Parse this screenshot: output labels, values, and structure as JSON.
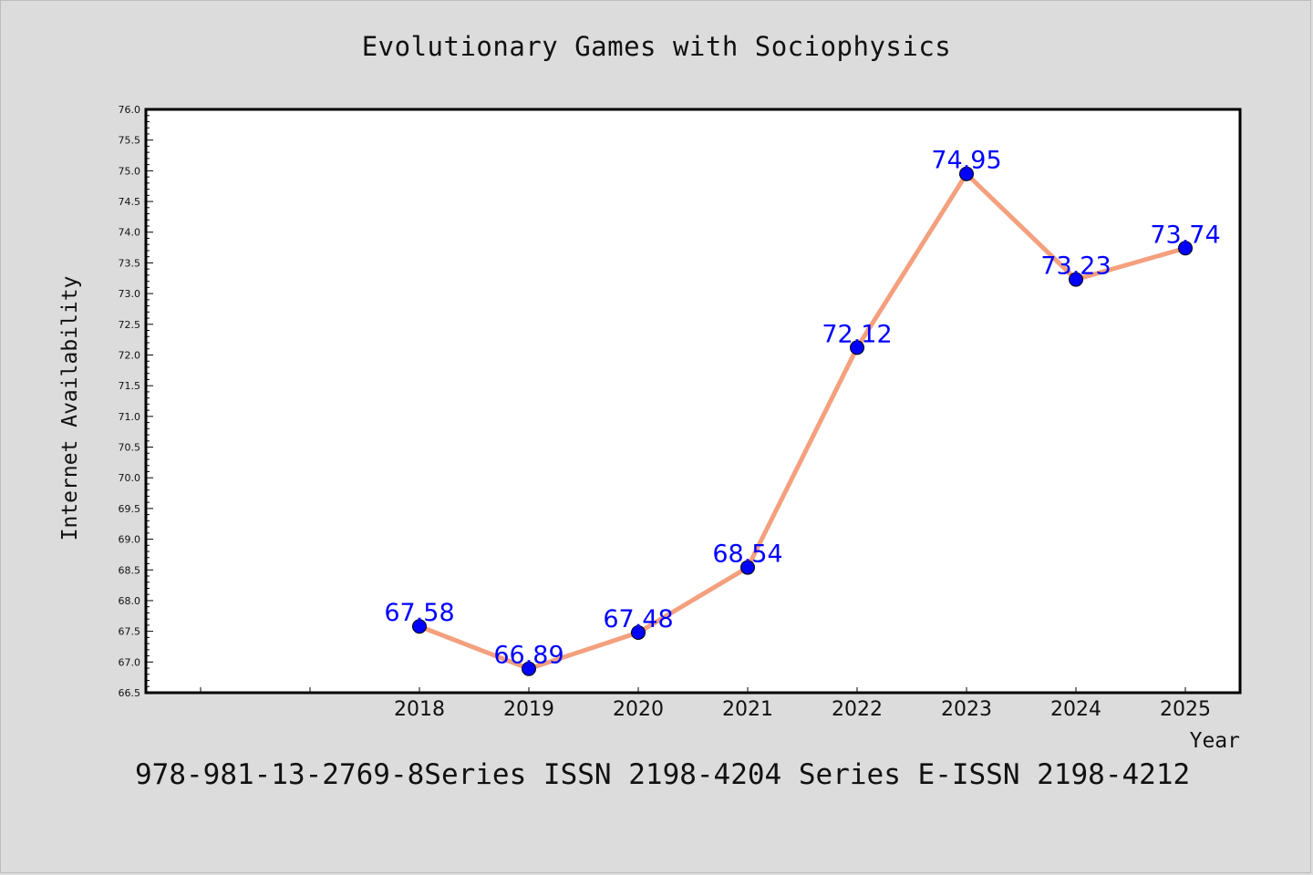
{
  "chart_data": {
    "type": "line",
    "title": "Evolutionary Games with Sociophysics",
    "xlabel": "Year",
    "ylabel": "Internet Availability",
    "x": [
      2018,
      2019,
      2020,
      2021,
      2022,
      2023,
      2024,
      2025
    ],
    "series": [
      {
        "values": [
          67.58,
          66.89,
          67.48,
          68.54,
          72.12,
          74.95,
          73.23,
          73.74
        ],
        "line_color": "#f4a07e",
        "marker_color": "#0000ff"
      }
    ],
    "ylim": [
      66.5,
      76.0
    ],
    "y_ticks": [
      "66.5",
      "67.0",
      "67.5",
      "68.0",
      "68.5",
      "69.0",
      "69.5",
      "70.0",
      "70.5",
      "71.0",
      "71.5",
      "72.0",
      "72.5",
      "73.0",
      "73.5",
      "74.0",
      "74.5",
      "75.0",
      "75.5",
      "76.0"
    ],
    "x_tick_labels": [
      "2018",
      "2019",
      "2020",
      "2021",
      "2022",
      "2023",
      "2024",
      "2025"
    ],
    "data_labels": [
      "67.58",
      "66.89",
      "67.48",
      "68.54",
      "72.12",
      "74.95",
      "73.23",
      "73.74"
    ],
    "grid": false,
    "legend": "none"
  },
  "footer_text": "978-981-13-2769-8Series ISSN 2198-4204 Series E-ISSN 2198-4212"
}
